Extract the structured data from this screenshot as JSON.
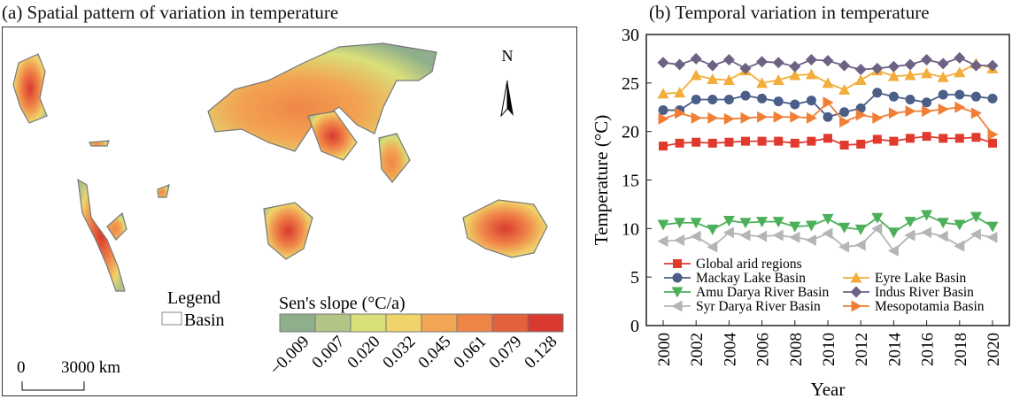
{
  "map_panel": {
    "title": "(a) Spatial pattern of variation in temperature",
    "north_label": "N",
    "legend_title": "Legend",
    "legend_basin": "Basin",
    "scale_labels": [
      "0",
      "3000 km"
    ],
    "slope_title": "Sen's slope (°C/a)",
    "slope_classes": [
      {
        "label": "−0.009",
        "color": "#8fae8c"
      },
      {
        "label": "0.007",
        "color": "#b3c487"
      },
      {
        "label": "0.020",
        "color": "#d9e07a"
      },
      {
        "label": "0.032",
        "color": "#f0d46a"
      },
      {
        "label": "0.045",
        "color": "#f2a552"
      },
      {
        "label": "0.061",
        "color": "#f08548"
      },
      {
        "label": "0.079",
        "color": "#e5603c"
      },
      {
        "label": "0.128",
        "color": "#d93a30"
      }
    ]
  },
  "chart_data": {
    "type": "line",
    "title": "(b) Temporal variation in temperature",
    "xlabel": "Year",
    "ylabel": "Temperature (°C)",
    "xlim": [
      2000,
      2020
    ],
    "ylim": [
      0,
      30
    ],
    "xticks": [
      2000,
      2002,
      2004,
      2006,
      2008,
      2010,
      2012,
      2014,
      2016,
      2018,
      2020
    ],
    "yticks": [
      0,
      5,
      10,
      15,
      20,
      25,
      30
    ],
    "legend_position": "bottom",
    "x": [
      2000,
      2001,
      2002,
      2003,
      2004,
      2005,
      2006,
      2007,
      2008,
      2009,
      2010,
      2011,
      2012,
      2013,
      2014,
      2015,
      2016,
      2017,
      2018,
      2019,
      2020
    ],
    "series": [
      {
        "name": "Global arid regions",
        "color": "#e03a2f",
        "marker": "square",
        "values": [
          18.5,
          18.8,
          18.9,
          18.8,
          18.9,
          19.0,
          19.0,
          19.0,
          18.8,
          19.0,
          19.3,
          18.6,
          18.7,
          19.2,
          19.0,
          19.3,
          19.5,
          19.3,
          19.3,
          19.4,
          18.8
        ]
      },
      {
        "name": "Mackay Lake Basin",
        "color": "#4a5e88",
        "marker": "circle",
        "values": [
          22.2,
          22.2,
          23.3,
          23.3,
          23.3,
          23.7,
          23.4,
          23.1,
          22.8,
          23.2,
          21.5,
          22.0,
          22.4,
          24.0,
          23.6,
          23.3,
          23.0,
          23.8,
          23.8,
          23.6,
          23.4
        ]
      },
      {
        "name": "Eyre Lake Basin",
        "color": "#f2ad3a",
        "marker": "triangle-up",
        "values": [
          23.9,
          24.0,
          25.8,
          25.4,
          25.3,
          26.3,
          25.0,
          25.3,
          25.8,
          25.9,
          25.0,
          24.3,
          25.3,
          26.3,
          25.7,
          25.8,
          26.0,
          25.6,
          26.1,
          27.0,
          26.5
        ]
      },
      {
        "name": "Amu Darya River Basin",
        "color": "#4cb05a",
        "marker": "triangle-down",
        "values": [
          10.4,
          10.6,
          10.6,
          9.9,
          10.8,
          10.6,
          10.7,
          10.7,
          10.2,
          10.3,
          11.0,
          10.1,
          9.9,
          11.1,
          9.6,
          10.7,
          11.4,
          10.6,
          10.4,
          11.2,
          10.2
        ]
      },
      {
        "name": "Indus River Basin",
        "color": "#6e6284",
        "marker": "diamond",
        "values": [
          27.1,
          26.9,
          27.5,
          26.8,
          27.4,
          26.5,
          27.2,
          27.1,
          26.7,
          27.4,
          27.3,
          26.8,
          26.4,
          26.5,
          26.7,
          26.9,
          27.4,
          27.0,
          27.6,
          26.8,
          26.8
        ]
      },
      {
        "name": "Syr Darya River Basin",
        "color": "#b5b5b5",
        "marker": "triangle-left",
        "values": [
          8.7,
          8.8,
          9.2,
          8.1,
          9.6,
          9.3,
          9.2,
          9.3,
          9.1,
          8.8,
          9.5,
          8.1,
          8.3,
          10.0,
          7.7,
          9.3,
          9.6,
          9.2,
          8.2,
          9.4,
          9.1
        ]
      },
      {
        "name": "Mesopotamia Basin",
        "color": "#f07f35",
        "marker": "triangle-right",
        "values": [
          21.3,
          21.9,
          21.4,
          21.4,
          21.3,
          21.4,
          21.5,
          21.5,
          21.5,
          21.4,
          23.0,
          21.0,
          21.7,
          21.4,
          21.9,
          22.1,
          22.1,
          22.3,
          22.5,
          21.9,
          19.7
        ]
      }
    ]
  }
}
